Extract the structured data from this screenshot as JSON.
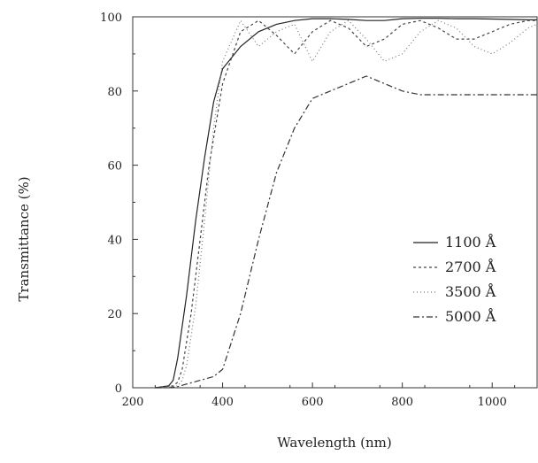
{
  "chart_data": {
    "type": "line",
    "title": "",
    "xlabel": "Wavelength (nm)",
    "ylabel": "Transmittance (%)",
    "xlim": [
      200,
      1100
    ],
    "ylim": [
      0,
      100
    ],
    "xticks": [
      200,
      400,
      600,
      800,
      1000
    ],
    "yticks": [
      0,
      20,
      40,
      60,
      80,
      100
    ],
    "grid": false,
    "legend_position": "right",
    "series": [
      {
        "name": "1100 Å",
        "color": "#222222",
        "dash": "",
        "x": [
          250,
          280,
          290,
          300,
          320,
          340,
          360,
          380,
          400,
          440,
          480,
          520,
          560,
          600,
          640,
          680,
          720,
          760,
          800,
          840,
          880,
          920,
          960,
          1000,
          1040,
          1080,
          1100
        ],
        "y": [
          0,
          0.5,
          2,
          8,
          25,
          45,
          62,
          77,
          86,
          92,
          96,
          98,
          99,
          99.5,
          99.5,
          99.3,
          99,
          99,
          99.5,
          99.6,
          99.6,
          99.5,
          99.5,
          99.4,
          99.3,
          99.2,
          99.2
        ]
      },
      {
        "name": "2700 Å",
        "color": "#444444",
        "dash": "3,3",
        "x": [
          250,
          290,
          300,
          310,
          330,
          350,
          370,
          400,
          440,
          480,
          520,
          560,
          600,
          640,
          680,
          720,
          760,
          800,
          840,
          880,
          920,
          960,
          1000,
          1040,
          1080,
          1100
        ],
        "y": [
          0,
          0.5,
          1.5,
          5,
          20,
          40,
          60,
          82,
          96,
          99,
          95,
          90,
          96,
          99,
          97,
          92,
          94,
          98,
          99,
          97,
          94,
          94,
          96,
          98,
          99,
          99
        ]
      },
      {
        "name": "3500 Å",
        "color": "#777777",
        "dash": "1,3",
        "x": [
          250,
          300,
          310,
          320,
          340,
          360,
          380,
          400,
          440,
          480,
          520,
          560,
          600,
          640,
          680,
          720,
          760,
          800,
          840,
          880,
          920,
          960,
          1000,
          1040,
          1080,
          1100
        ],
        "y": [
          0,
          0.5,
          2,
          6,
          22,
          45,
          70,
          88,
          99,
          92,
          96,
          98,
          88,
          96,
          99,
          94,
          88,
          90,
          96,
          99,
          97,
          92,
          90,
          93,
          97,
          98
        ]
      },
      {
        "name": "5000 Å",
        "color": "#333333",
        "dash": "7,3,2,3",
        "x": [
          250,
          280,
          300,
          320,
          350,
          380,
          400,
          440,
          480,
          520,
          560,
          600,
          640,
          680,
          720,
          760,
          800,
          840,
          880,
          920,
          960,
          1000,
          1040,
          1080,
          1100
        ],
        "y": [
          0,
          0,
          0.3,
          1,
          2,
          3,
          5,
          20,
          40,
          58,
          70,
          78,
          80,
          82,
          84,
          82,
          80,
          79,
          79,
          79,
          79,
          79,
          79,
          79,
          79
        ]
      }
    ]
  }
}
